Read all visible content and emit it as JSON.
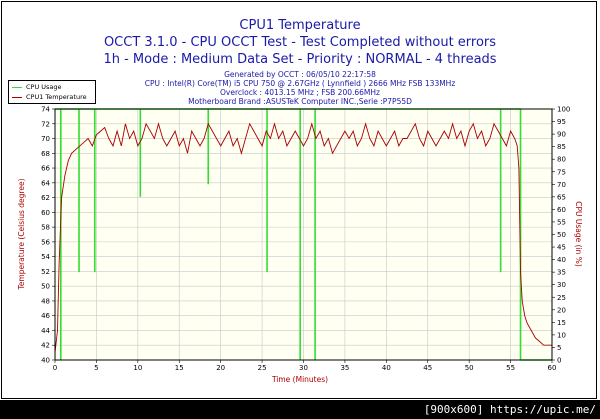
{
  "chart_data": {
    "type": "line",
    "title": "CPU1 Temperature",
    "subtitle_lines": [
      "OCCT 3.1.0 - CPU OCCT Test - Test Completed without errors",
      "1h - Mode : Medium Data Set - Priority : NORMAL - 4 threads"
    ],
    "info_lines": [
      "Generated by OCCT : 06/05/10 22:17:58",
      "CPU : Intel(R) Core(TM) i5 CPU 750 @ 2.67GHz ( Lynnfield ) 2666 MHz FSB 133MHz",
      "Overclock : 4013.15 MHz ; FSB 200.66MHz",
      "Motherboard Brand :ASUSTeK Computer INC.,Serie :P7P55D"
    ],
    "xlabel": "Time (Minutes)",
    "ylabel": "Temperature (Celsius degree)",
    "y2label": "CPU Usage (in %)",
    "xlim": [
      0,
      60
    ],
    "ylim": [
      40,
      74
    ],
    "y2lim": [
      0,
      100
    ],
    "x_ticks": [
      "0",
      "5",
      "10",
      "15",
      "20",
      "25",
      "30",
      "35",
      "40",
      "45",
      "50",
      "55",
      "60"
    ],
    "y_ticks": [
      "40",
      "42",
      "44",
      "46",
      "48",
      "50",
      "52",
      "54",
      "56",
      "58",
      "60",
      "62",
      "64",
      "66",
      "68",
      "70",
      "72",
      "74"
    ],
    "y2_ticks": [
      "0",
      "5",
      "10",
      "15",
      "20",
      "25",
      "30",
      "35",
      "40",
      "45",
      "50",
      "55",
      "60",
      "65",
      "70",
      "75",
      "80",
      "85",
      "90",
      "95",
      "100"
    ],
    "grid": true,
    "legend_position": "top-left",
    "series": [
      {
        "name": "CPU Usage",
        "axis": "right",
        "color": "#33dd33",
        "base_value": 100,
        "dips": [
          {
            "x": 0.7,
            "value": 0
          },
          {
            "x": 2.9,
            "value": 35
          },
          {
            "x": 4.8,
            "value": 35
          },
          {
            "x": 10.3,
            "value": 65
          },
          {
            "x": 18.5,
            "value": 70
          },
          {
            "x": 25.6,
            "value": 35
          },
          {
            "x": 29.6,
            "value": 0
          },
          {
            "x": 31.4,
            "value": 0
          },
          {
            "x": 53.8,
            "value": 35
          },
          {
            "x": 56.2,
            "value": 0
          }
        ]
      },
      {
        "name": "CPU1 Temperature",
        "axis": "left",
        "color": "#aa0000",
        "points": [
          [
            0,
            41
          ],
          [
            0.3,
            44
          ],
          [
            0.5,
            53
          ],
          [
            0.8,
            62
          ],
          [
            1.2,
            65
          ],
          [
            1.6,
            67
          ],
          [
            2.0,
            68
          ],
          [
            2.5,
            68.5
          ],
          [
            3.0,
            69
          ],
          [
            3.5,
            69.5
          ],
          [
            4.0,
            70
          ],
          [
            4.5,
            69
          ],
          [
            5.0,
            70.5
          ],
          [
            5.5,
            71
          ],
          [
            6.0,
            71.5
          ],
          [
            6.5,
            70
          ],
          [
            7.0,
            69
          ],
          [
            7.5,
            71
          ],
          [
            8.0,
            69
          ],
          [
            8.5,
            72
          ],
          [
            9.0,
            70
          ],
          [
            9.5,
            71
          ],
          [
            10.0,
            69
          ],
          [
            10.5,
            70
          ],
          [
            11.0,
            72
          ],
          [
            11.5,
            71
          ],
          [
            12.0,
            70
          ],
          [
            12.5,
            72
          ],
          [
            13.0,
            70
          ],
          [
            13.5,
            69
          ],
          [
            14.0,
            70
          ],
          [
            14.5,
            71
          ],
          [
            15.0,
            69
          ],
          [
            15.5,
            70
          ],
          [
            16.0,
            68
          ],
          [
            16.5,
            71
          ],
          [
            17.0,
            70
          ],
          [
            17.5,
            69
          ],
          [
            18.0,
            70
          ],
          [
            18.5,
            72
          ],
          [
            19.0,
            71
          ],
          [
            19.5,
            70
          ],
          [
            20.0,
            69
          ],
          [
            20.5,
            70
          ],
          [
            21.0,
            71
          ],
          [
            21.5,
            69
          ],
          [
            22.0,
            70
          ],
          [
            22.5,
            68
          ],
          [
            23.0,
            70
          ],
          [
            23.5,
            72
          ],
          [
            24.0,
            71
          ],
          [
            24.5,
            70
          ],
          [
            25.0,
            69
          ],
          [
            25.5,
            71
          ],
          [
            26.0,
            70
          ],
          [
            26.5,
            72
          ],
          [
            27.0,
            70
          ],
          [
            27.5,
            71
          ],
          [
            28.0,
            69
          ],
          [
            28.5,
            70
          ],
          [
            29.0,
            71
          ],
          [
            29.5,
            70
          ],
          [
            30.0,
            69
          ],
          [
            30.5,
            70
          ],
          [
            31.0,
            72
          ],
          [
            31.5,
            70
          ],
          [
            32.0,
            71
          ],
          [
            32.5,
            69
          ],
          [
            33.0,
            70
          ],
          [
            33.5,
            68
          ],
          [
            34.0,
            69
          ],
          [
            34.5,
            70
          ],
          [
            35.0,
            71
          ],
          [
            35.5,
            70
          ],
          [
            36.0,
            71
          ],
          [
            36.5,
            69
          ],
          [
            37.0,
            70
          ],
          [
            37.5,
            72
          ],
          [
            38.0,
            70
          ],
          [
            38.5,
            69
          ],
          [
            39.0,
            71
          ],
          [
            39.5,
            70
          ],
          [
            40.0,
            69
          ],
          [
            40.5,
            70
          ],
          [
            41.0,
            71
          ],
          [
            41.5,
            69
          ],
          [
            42.0,
            70
          ],
          [
            42.5,
            70
          ],
          [
            43.0,
            71
          ],
          [
            43.5,
            72
          ],
          [
            44.0,
            70
          ],
          [
            44.5,
            69
          ],
          [
            45.0,
            71
          ],
          [
            45.5,
            70
          ],
          [
            46.0,
            69
          ],
          [
            46.5,
            70
          ],
          [
            47.0,
            71
          ],
          [
            47.5,
            70
          ],
          [
            48.0,
            72
          ],
          [
            48.5,
            70
          ],
          [
            49.0,
            71
          ],
          [
            49.5,
            69
          ],
          [
            50.0,
            71
          ],
          [
            50.5,
            72
          ],
          [
            51.0,
            70
          ],
          [
            51.5,
            71
          ],
          [
            52.0,
            69
          ],
          [
            52.5,
            70
          ],
          [
            53.0,
            72
          ],
          [
            53.5,
            71
          ],
          [
            54.0,
            70
          ],
          [
            54.5,
            69
          ],
          [
            55.0,
            71
          ],
          [
            55.5,
            70
          ],
          [
            55.8,
            69
          ],
          [
            56.0,
            66
          ],
          [
            56.2,
            52
          ],
          [
            56.4,
            48
          ],
          [
            56.7,
            46
          ],
          [
            57.0,
            45
          ],
          [
            57.5,
            44
          ],
          [
            58.0,
            43
          ],
          [
            58.5,
            42.5
          ],
          [
            59.0,
            42
          ],
          [
            59.5,
            42
          ],
          [
            60,
            42
          ]
        ]
      }
    ]
  },
  "watermark": "[900x600] https://upic.me/"
}
